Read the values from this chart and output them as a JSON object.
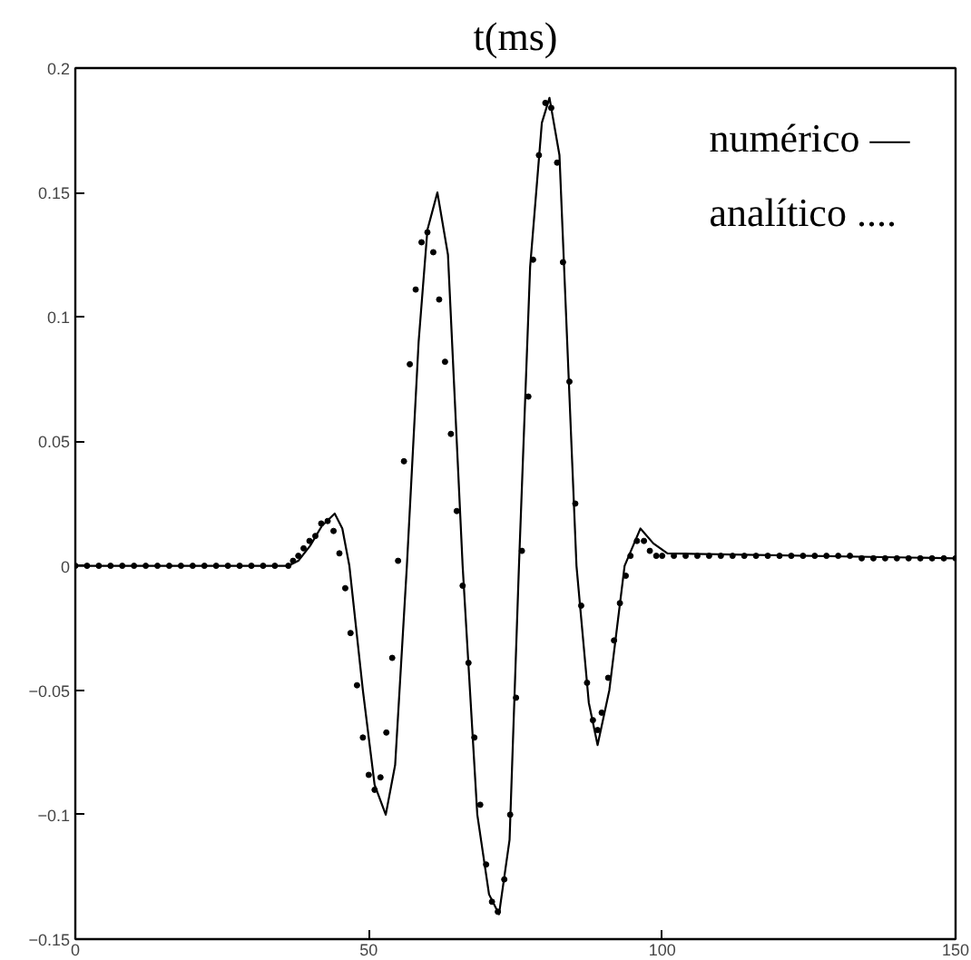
{
  "chart_data": {
    "type": "line",
    "title": "t(ms)",
    "annotations": [
      "numérico —",
      "analítico ...."
    ],
    "xlim": [
      0,
      150
    ],
    "xticks": [
      0,
      50,
      100,
      150
    ],
    "ylim": [
      -0.15,
      0.2
    ],
    "yticks": [
      {
        "value": -0.15,
        "label": "−0.15"
      },
      {
        "value": -0.1,
        "label": "−0.1"
      },
      {
        "value": -0.05,
        "label": "−0.05"
      },
      0,
      0.05,
      0.1,
      0.15,
      0.2
    ],
    "grid": false,
    "series": [
      {
        "color": "#000000",
        "line_style": "solid",
        "marker": "none",
        "x": [
          0,
          36.3,
          38,
          40,
          42,
          44.2,
          45.5,
          46.7,
          49,
          51,
          52.9,
          54.5,
          56.5,
          58.5,
          60,
          61.7,
          63.5,
          66,
          68.5,
          70.5,
          72.2,
          74,
          75.6,
          77.5,
          79.5,
          80.8,
          82.5,
          85.4,
          87.5,
          89.0,
          91,
          93.6,
          96.3,
          98.5,
          100.9,
          150
        ],
        "values": [
          0,
          0,
          0.002,
          0.008,
          0.016,
          0.021,
          0.015,
          0,
          -0.05,
          -0.088,
          -0.1,
          -0.08,
          0,
          0.09,
          0.135,
          0.15,
          0.125,
          0,
          -0.1,
          -0.132,
          -0.14,
          -0.11,
          0,
          0.12,
          0.178,
          0.188,
          0.165,
          0,
          -0.055,
          -0.072,
          -0.05,
          0,
          0.015,
          0.009,
          0.005,
          0.003
        ]
      },
      {
        "type": "scatter",
        "color": "#000000",
        "marker": "circle",
        "x": [
          0,
          2,
          4,
          6,
          8,
          10,
          12,
          14,
          16,
          18,
          20,
          22,
          24,
          26,
          28,
          30,
          32,
          34,
          36.3,
          37.1,
          38.0,
          38.9,
          39.9,
          40.9,
          41.9,
          43.0,
          44.0,
          45.0,
          46.0,
          46.9,
          48.0,
          49.0,
          50.0,
          51.0,
          52.0,
          53.0,
          54.0,
          55.0,
          56.0,
          57.0,
          58.0,
          59.0,
          60.0,
          61.0,
          62.0,
          63.0,
          64.0,
          65.0,
          66.0,
          67.0,
          68.0,
          69.0,
          70.0,
          71.0,
          72.0,
          73.1,
          74.1,
          75.1,
          76.1,
          77.2,
          78.0,
          79.0,
          80.1,
          81.1,
          82.1,
          83.1,
          84.2,
          85.2,
          86.2,
          87.2,
          88.2,
          89.0,
          89.7,
          90.8,
          91.8,
          92.8,
          93.8,
          94.6,
          95.7,
          96.9,
          97.9,
          99.0,
          100,
          102,
          104,
          106,
          108,
          110,
          112,
          114,
          116,
          118,
          120,
          122,
          124,
          126,
          128,
          130,
          132,
          134,
          136,
          138,
          140,
          142,
          144,
          146,
          148,
          150
        ],
        "values": [
          0,
          0,
          0,
          0,
          0,
          0,
          0,
          0,
          0,
          0,
          0,
          0,
          0,
          0,
          0,
          0,
          0,
          0,
          0,
          0.002,
          0.004,
          0.007,
          0.01,
          0.012,
          0.017,
          0.018,
          0.014,
          0.005,
          -0.009,
          -0.027,
          -0.048,
          -0.069,
          -0.084,
          -0.09,
          -0.085,
          -0.067,
          -0.037,
          0.002,
          0.042,
          0.081,
          0.111,
          0.13,
          0.134,
          0.126,
          0.107,
          0.082,
          0.053,
          0.022,
          -0.008,
          -0.039,
          -0.069,
          -0.096,
          -0.12,
          -0.135,
          -0.139,
          -0.126,
          -0.1,
          -0.053,
          0.006,
          0.068,
          0.123,
          0.165,
          0.186,
          0.184,
          0.162,
          0.122,
          0.074,
          0.025,
          -0.016,
          -0.047,
          -0.062,
          -0.066,
          -0.059,
          -0.045,
          -0.03,
          -0.015,
          -0.004,
          0.004,
          0.01,
          0.01,
          0.006,
          0.004,
          0.004,
          0.004,
          0.004,
          0.004,
          0.004,
          0.004,
          0.004,
          0.004,
          0.004,
          0.004,
          0.004,
          0.004,
          0.004,
          0.004,
          0.004,
          0.004,
          0.004,
          0.003,
          0.003,
          0.003,
          0.003,
          0.003,
          0.003,
          0.003,
          0.003,
          0.003
        ]
      }
    ]
  }
}
